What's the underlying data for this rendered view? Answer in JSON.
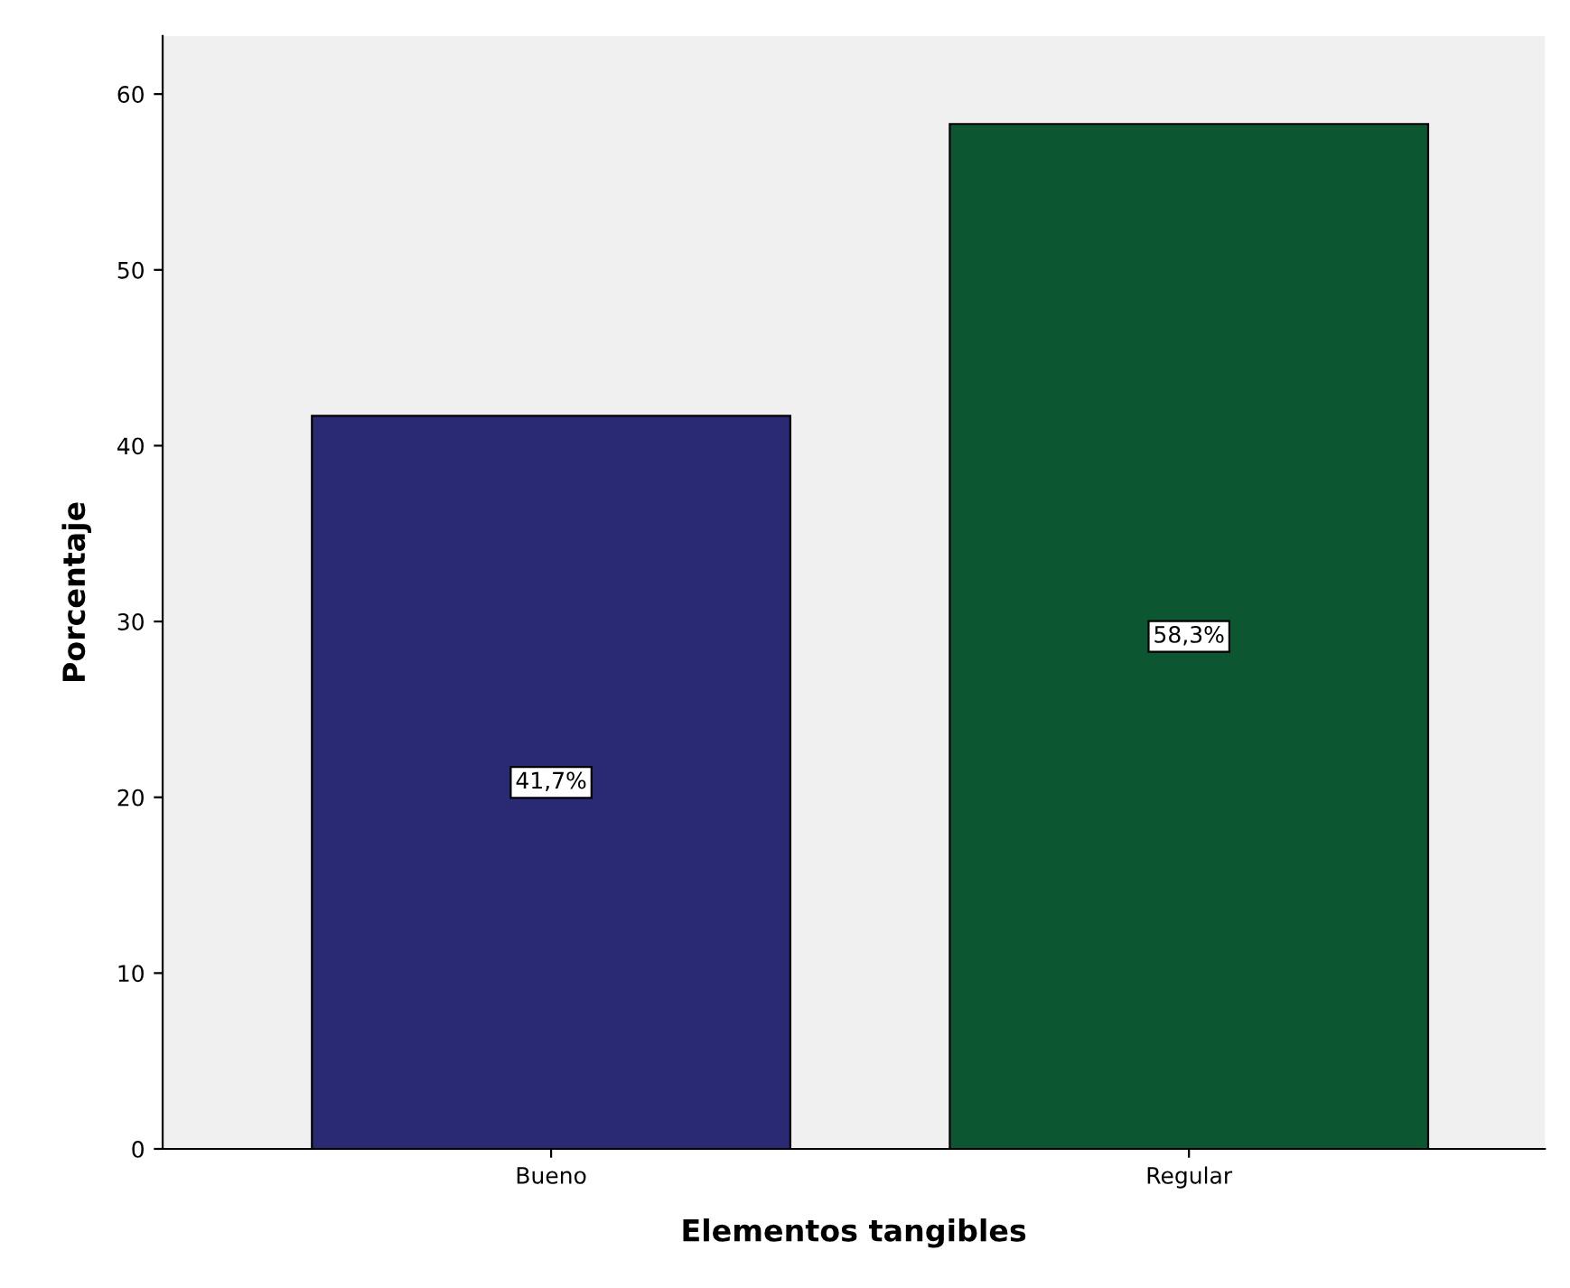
{
  "chart_data": {
    "type": "bar",
    "xlabel": "Elementos tangibles",
    "ylabel": "Porcentaje",
    "categories": [
      "Bueno",
      "Regular"
    ],
    "values": [
      41.7,
      58.3
    ],
    "colors": [
      "#292a73",
      "#0c5732"
    ],
    "value_labels": [
      "41,7%",
      "58,3%"
    ],
    "ylim": [
      0,
      63.3
    ],
    "yticks": [
      0,
      10,
      20,
      30,
      40,
      50,
      60
    ],
    "grid": false,
    "legend": false
  }
}
